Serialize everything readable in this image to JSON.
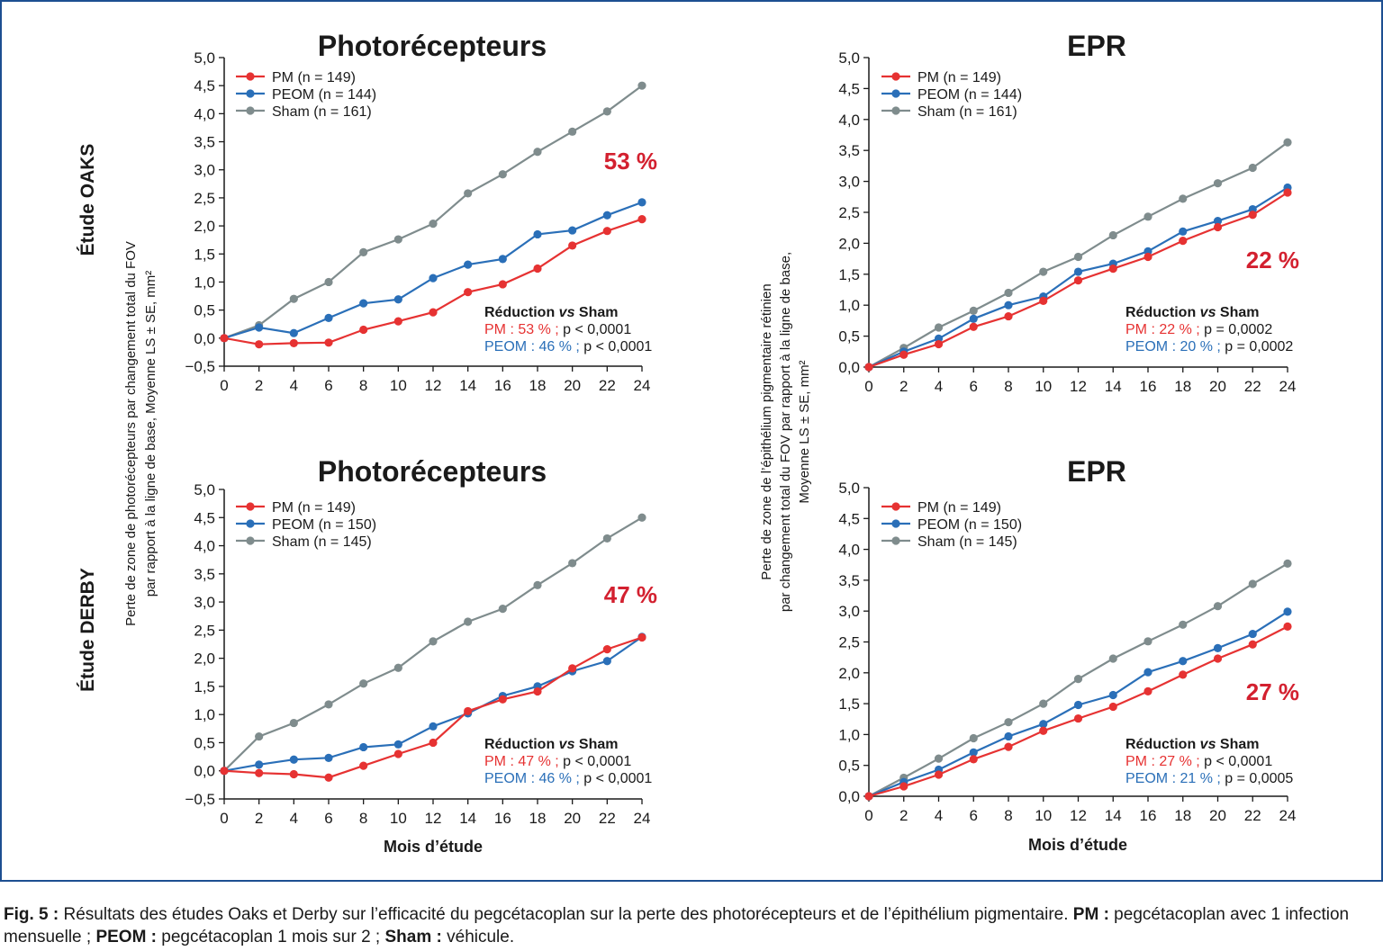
{
  "study_labels": {
    "oaks": "Étude OAKS",
    "derby": "Étude DERBY"
  },
  "ylabel_left": [
    "Perte de zone de photorécepteurs par changement total du FOV",
    "par rapport à la ligne de base, Moyenne LS ± SE, mm²"
  ],
  "ylabel_right": [
    "Perte de zone de l’épithélium pigmentaire rétinien",
    "par changement total du FOV par rapport à la ligne de base,",
    "Moyenne LS ± SE, mm²"
  ],
  "xlabel": "Mois d’étude",
  "colors": {
    "PM": "#e63232",
    "PEOM": "#2a6fb8",
    "Sham": "#7f8c8d",
    "reduction": "#d3202f",
    "frame": "#1d4f91"
  },
  "chart_data": [
    {
      "type": "line",
      "title": "Photorécepteurs",
      "x": [
        0,
        2,
        4,
        6,
        8,
        10,
        12,
        14,
        16,
        18,
        20,
        22,
        24
      ],
      "xlim": [
        0,
        24
      ],
      "ylim": [
        -0.5,
        5.0
      ],
      "yticks": [
        "−0,5",
        "0,0",
        "0,5",
        "1,0",
        "1,5",
        "2,0",
        "2,5",
        "3,0",
        "3,5",
        "4,0",
        "4,5",
        "5,0"
      ],
      "series": [
        {
          "name": "PM (n = 149)",
          "values": [
            0,
            -0.11,
            -0.09,
            -0.08,
            0.15,
            0.3,
            0.46,
            0.82,
            0.96,
            1.24,
            1.65,
            1.91,
            2.12
          ]
        },
        {
          "name": "PEOM (n = 144)",
          "values": [
            0,
            0.19,
            0.09,
            0.36,
            0.62,
            0.69,
            1.07,
            1.31,
            1.41,
            1.85,
            1.92,
            2.19,
            2.42
          ]
        },
        {
          "name": "Sham (n = 161)",
          "values": [
            0,
            0.23,
            0.7,
            1.0,
            1.53,
            1.76,
            2.04,
            2.58,
            2.92,
            3.32,
            3.68,
            4.04,
            4.5
          ]
        }
      ],
      "big_label": "53 %",
      "stats_title_a": "Réduction ",
      "stats_title_b": "vs",
      "stats_title_c": " Sham",
      "stats_pm_a": "PM : 53 % ;",
      "stats_pm_b": " p < 0,0001",
      "stats_peom_a": "PEOM : 46 % ;",
      "stats_peom_b": " p < 0,0001"
    },
    {
      "type": "line",
      "title": "EPR",
      "x": [
        0,
        2,
        4,
        6,
        8,
        10,
        12,
        14,
        16,
        18,
        20,
        22,
        24
      ],
      "xlim": [
        0,
        24
      ],
      "ylim": [
        0.0,
        5.0
      ],
      "yticks": [
        "0,0",
        "0,5",
        "1,0",
        "1,5",
        "2,0",
        "2,5",
        "3,0",
        "3,5",
        "4,0",
        "4,5",
        "5,0"
      ],
      "series": [
        {
          "name": "PM (n = 149)",
          "values": [
            0,
            0.2,
            0.37,
            0.65,
            0.82,
            1.07,
            1.4,
            1.59,
            1.78,
            2.04,
            2.26,
            2.46,
            2.82
          ]
        },
        {
          "name": "PEOM (n = 144)",
          "values": [
            0,
            0.25,
            0.46,
            0.78,
            1.0,
            1.14,
            1.54,
            1.67,
            1.87,
            2.19,
            2.36,
            2.55,
            2.9
          ]
        },
        {
          "name": "Sham (n = 161)",
          "values": [
            0,
            0.31,
            0.64,
            0.91,
            1.2,
            1.54,
            1.78,
            2.13,
            2.43,
            2.72,
            2.97,
            3.22,
            3.63
          ]
        }
      ],
      "big_label": "22 %",
      "stats_title_a": "Réduction ",
      "stats_title_b": "vs",
      "stats_title_c": " Sham",
      "stats_pm_a": "PM : 22 % ;",
      "stats_pm_b": " p = 0,0002",
      "stats_peom_a": "PEOM : 20 % ;",
      "stats_peom_b": " p = 0,0002"
    },
    {
      "type": "line",
      "title": "Photorécepteurs",
      "x": [
        0,
        2,
        4,
        6,
        8,
        10,
        12,
        14,
        16,
        18,
        20,
        22,
        24
      ],
      "xlim": [
        0,
        24
      ],
      "ylim": [
        -0.5,
        5.0
      ],
      "yticks": [
        "−0,5",
        "0,0",
        "0,5",
        "1,0",
        "1,5",
        "2,0",
        "2,5",
        "3,0",
        "3,5",
        "4,0",
        "4,5",
        "5,0"
      ],
      "series": [
        {
          "name": "PM (n = 149)",
          "values": [
            0,
            -0.04,
            -0.06,
            -0.12,
            0.09,
            0.3,
            0.5,
            1.06,
            1.27,
            1.41,
            1.82,
            2.16,
            2.37
          ]
        },
        {
          "name": "PEOM (n = 150)",
          "values": [
            0,
            0.11,
            0.2,
            0.23,
            0.42,
            0.47,
            0.79,
            1.02,
            1.33,
            1.5,
            1.77,
            1.95,
            2.38
          ]
        },
        {
          "name": "Sham (n = 145)",
          "values": [
            0,
            0.61,
            0.85,
            1.18,
            1.55,
            1.83,
            2.3,
            2.65,
            2.88,
            3.3,
            3.69,
            4.13,
            4.5
          ]
        }
      ],
      "big_label": "47 %",
      "stats_title_a": "Réduction ",
      "stats_title_b": "vs",
      "stats_title_c": " Sham",
      "stats_pm_a": "PM : 47 % ;",
      "stats_pm_b": " p < 0,0001",
      "stats_peom_a": "PEOM : 46 % ;",
      "stats_peom_b": " p < 0,0001"
    },
    {
      "type": "line",
      "title": "EPR",
      "x": [
        0,
        2,
        4,
        6,
        8,
        10,
        12,
        14,
        16,
        18,
        20,
        22,
        24
      ],
      "xlim": [
        0,
        24
      ],
      "ylim": [
        0.0,
        5.0
      ],
      "yticks": [
        "0,0",
        "0,5",
        "1,0",
        "1,5",
        "2,0",
        "2,5",
        "3,0",
        "3,5",
        "4,0",
        "4,5",
        "5,0"
      ],
      "series": [
        {
          "name": "PM (n = 149)",
          "values": [
            0,
            0.16,
            0.35,
            0.6,
            0.8,
            1.06,
            1.26,
            1.45,
            1.7,
            1.97,
            2.23,
            2.46,
            2.75
          ]
        },
        {
          "name": "PEOM (n = 150)",
          "values": [
            0,
            0.23,
            0.43,
            0.71,
            0.97,
            1.17,
            1.48,
            1.64,
            2.01,
            2.19,
            2.4,
            2.63,
            2.99
          ]
        },
        {
          "name": "Sham (n = 145)",
          "values": [
            0,
            0.3,
            0.61,
            0.94,
            1.2,
            1.5,
            1.9,
            2.23,
            2.51,
            2.78,
            3.08,
            3.44,
            3.77
          ]
        }
      ],
      "big_label": "27 %",
      "stats_title_a": "Réduction ",
      "stats_title_b": "vs",
      "stats_title_c": " Sham",
      "stats_pm_a": "PM : 27 % ;",
      "stats_pm_b": " p < 0,0001",
      "stats_peom_a": "PEOM : 21 % ;",
      "stats_peom_b": " p = 0,0005"
    }
  ],
  "caption": {
    "fig": "Fig. 5 :",
    "text1": " Résultats des études Oaks et Derby sur l’efficacité du pegcétacoplan sur la perte des photorécepteurs et de l’épithélium pigmentaire. ",
    "pm_label": "PM :",
    "text2": " pegcétacoplan avec 1 infection mensuelle ; ",
    "peom_label": "PEOM :",
    "text3": " pegcétacoplan 1 mois sur 2 ; ",
    "sham_label": "Sham :",
    "text4": " véhicule."
  }
}
